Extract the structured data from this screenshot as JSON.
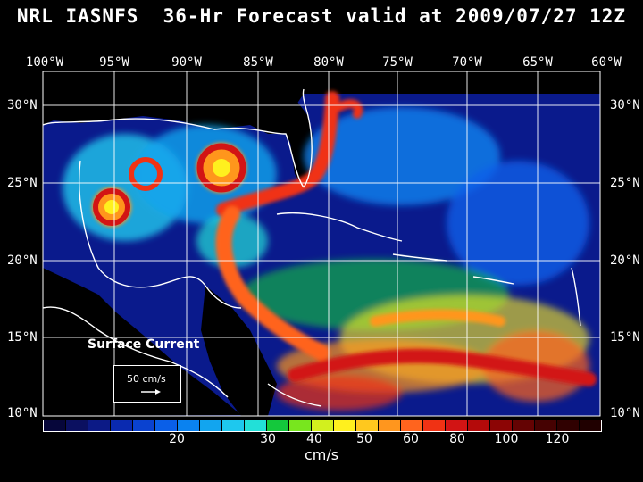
{
  "title": "NRL IASNFS  36-Hr Forecast valid at 2009/07/27 12Z",
  "lon_labels": [
    "100°W",
    "95°W",
    "90°W",
    "85°W",
    "80°W",
    "75°W",
    "70°W",
    "65°W",
    "60°W"
  ],
  "lat_labels": [
    "30°N",
    "25°N",
    "20°N",
    "15°N",
    "10°N"
  ],
  "annotation": "Surface Current",
  "reference_vector_label": "50 cm/s",
  "colorbar": {
    "colors": [
      "#06063a",
      "#0b1060",
      "#0c1a86",
      "#0a2ab0",
      "#0a42d0",
      "#0a5fe8",
      "#0a82f0",
      "#12a5ef",
      "#1ec8ee",
      "#22e0d8",
      "#14c83c",
      "#78e61e",
      "#d2f01e",
      "#fff01e",
      "#ffc81e",
      "#ff961e",
      "#ff641e",
      "#f03214",
      "#d21414",
      "#b40a0a",
      "#8c0505",
      "#640303",
      "#460202",
      "#300101",
      "#200000"
    ],
    "tick_labels": [
      "20",
      "30",
      "40",
      "50",
      "60",
      "80",
      "100",
      "120"
    ],
    "units": "cm/s"
  }
}
